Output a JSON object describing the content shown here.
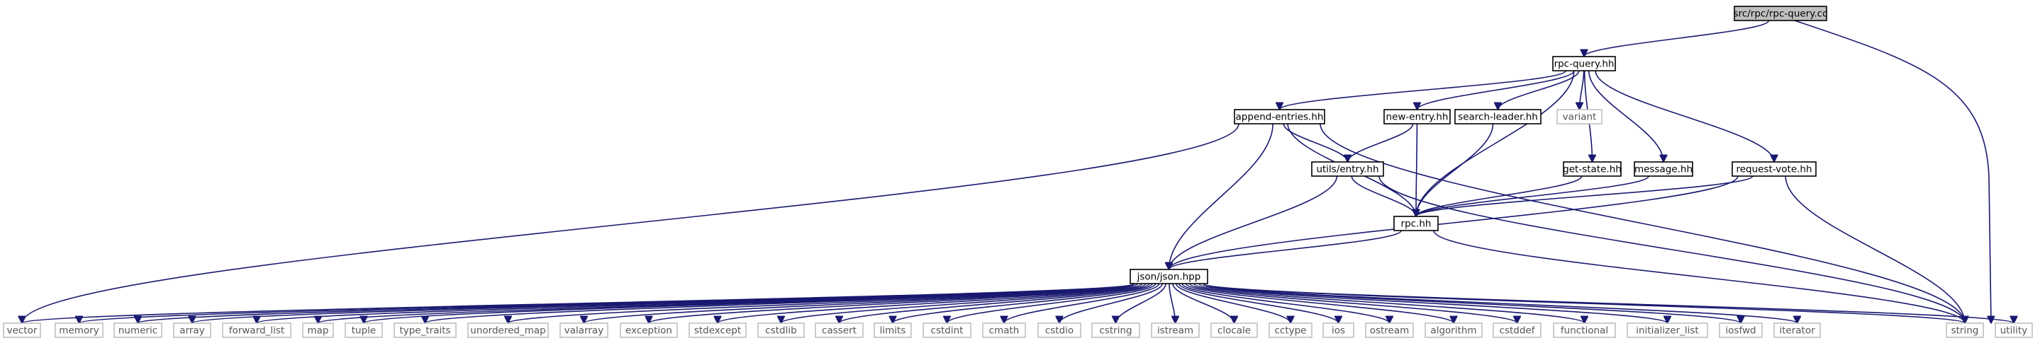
{
  "diagram": {
    "root": "src/rpc/rpc-query.cc",
    "colors": {
      "edge": "#191970",
      "root_fill": "#bfbfbf",
      "internal_border": "#000000",
      "external_border": "#bfbfbf"
    },
    "nodes": [
      {
        "id": "rpc-query-cc",
        "label": "src/rpc/rpc-query.cc",
        "kind": "root"
      },
      {
        "id": "rpc-query-hh",
        "label": "rpc-query.hh",
        "kind": "internal"
      },
      {
        "id": "append-entries-hh",
        "label": "append-entries.hh",
        "kind": "internal"
      },
      {
        "id": "new-entry-hh",
        "label": "new-entry.hh",
        "kind": "internal"
      },
      {
        "id": "search-leader-hh",
        "label": "search-leader.hh",
        "kind": "internal"
      },
      {
        "id": "variant",
        "label": "variant",
        "kind": "external"
      },
      {
        "id": "get-state-hh",
        "label": "get-state.hh",
        "kind": "internal"
      },
      {
        "id": "message-hh",
        "label": "message.hh",
        "kind": "internal"
      },
      {
        "id": "request-vote-hh",
        "label": "request-vote.hh",
        "kind": "internal"
      },
      {
        "id": "utils-entry-hh",
        "label": "utils/entry.hh",
        "kind": "internal"
      },
      {
        "id": "rpc-hh",
        "label": "rpc.hh",
        "kind": "internal"
      },
      {
        "id": "json-hpp",
        "label": "json/json.hpp",
        "kind": "internal"
      },
      {
        "id": "vector",
        "label": "vector",
        "kind": "external"
      },
      {
        "id": "memory",
        "label": "memory",
        "kind": "external"
      },
      {
        "id": "numeric",
        "label": "numeric",
        "kind": "external"
      },
      {
        "id": "array",
        "label": "array",
        "kind": "external"
      },
      {
        "id": "forward_list",
        "label": "forward_list",
        "kind": "external"
      },
      {
        "id": "map",
        "label": "map",
        "kind": "external"
      },
      {
        "id": "tuple",
        "label": "tuple",
        "kind": "external"
      },
      {
        "id": "type_traits",
        "label": "type_traits",
        "kind": "external"
      },
      {
        "id": "unordered_map",
        "label": "unordered_map",
        "kind": "external"
      },
      {
        "id": "valarray",
        "label": "valarray",
        "kind": "external"
      },
      {
        "id": "exception",
        "label": "exception",
        "kind": "external"
      },
      {
        "id": "stdexcept",
        "label": "stdexcept",
        "kind": "external"
      },
      {
        "id": "cstdlib",
        "label": "cstdlib",
        "kind": "external"
      },
      {
        "id": "cassert",
        "label": "cassert",
        "kind": "external"
      },
      {
        "id": "limits",
        "label": "limits",
        "kind": "external"
      },
      {
        "id": "cstdint",
        "label": "cstdint",
        "kind": "external"
      },
      {
        "id": "cmath",
        "label": "cmath",
        "kind": "external"
      },
      {
        "id": "cstdio",
        "label": "cstdio",
        "kind": "external"
      },
      {
        "id": "cstring",
        "label": "cstring",
        "kind": "external"
      },
      {
        "id": "istream",
        "label": "istream",
        "kind": "external"
      },
      {
        "id": "clocale",
        "label": "clocale",
        "kind": "external"
      },
      {
        "id": "cctype",
        "label": "cctype",
        "kind": "external"
      },
      {
        "id": "ios",
        "label": "ios",
        "kind": "external"
      },
      {
        "id": "ostream",
        "label": "ostream",
        "kind": "external"
      },
      {
        "id": "algorithm",
        "label": "algorithm",
        "kind": "external"
      },
      {
        "id": "cstddef",
        "label": "cstddef",
        "kind": "external"
      },
      {
        "id": "functional",
        "label": "functional",
        "kind": "external"
      },
      {
        "id": "initializer_list",
        "label": "initializer_list",
        "kind": "external"
      },
      {
        "id": "iosfwd",
        "label": "iosfwd",
        "kind": "external"
      },
      {
        "id": "iterator",
        "label": "iterator",
        "kind": "external"
      },
      {
        "id": "string",
        "label": "string",
        "kind": "external"
      },
      {
        "id": "utility",
        "label": "utility",
        "kind": "external"
      }
    ],
    "edges": [
      [
        "rpc-query-cc",
        "rpc-query-hh"
      ],
      [
        "rpc-query-cc",
        "utility"
      ],
      [
        "rpc-query-hh",
        "append-entries-hh"
      ],
      [
        "rpc-query-hh",
        "new-entry-hh"
      ],
      [
        "rpc-query-hh",
        "search-leader-hh"
      ],
      [
        "rpc-query-hh",
        "variant"
      ],
      [
        "rpc-query-hh",
        "get-state-hh"
      ],
      [
        "rpc-query-hh",
        "message-hh"
      ],
      [
        "rpc-query-hh",
        "request-vote-hh"
      ],
      [
        "rpc-query-hh",
        "rpc-hh"
      ],
      [
        "append-entries-hh",
        "utils-entry-hh"
      ],
      [
        "append-entries-hh",
        "rpc-hh"
      ],
      [
        "append-entries-hh",
        "json-hpp"
      ],
      [
        "append-entries-hh",
        "vector"
      ],
      [
        "append-entries-hh",
        "string"
      ],
      [
        "new-entry-hh",
        "utils-entry-hh"
      ],
      [
        "new-entry-hh",
        "rpc-hh"
      ],
      [
        "search-leader-hh",
        "rpc-hh"
      ],
      [
        "get-state-hh",
        "rpc-hh"
      ],
      [
        "message-hh",
        "rpc-hh"
      ],
      [
        "request-vote-hh",
        "rpc-hh"
      ],
      [
        "request-vote-hh",
        "json-hpp"
      ],
      [
        "request-vote-hh",
        "string"
      ],
      [
        "utils-entry-hh",
        "json-hpp"
      ],
      [
        "utils-entry-hh",
        "rpc-hh"
      ],
      [
        "utils-entry-hh",
        "string"
      ],
      [
        "rpc-hh",
        "json-hpp"
      ],
      [
        "rpc-hh",
        "string"
      ],
      [
        "json-hpp",
        "vector"
      ],
      [
        "json-hpp",
        "memory"
      ],
      [
        "json-hpp",
        "numeric"
      ],
      [
        "json-hpp",
        "array"
      ],
      [
        "json-hpp",
        "forward_list"
      ],
      [
        "json-hpp",
        "map"
      ],
      [
        "json-hpp",
        "tuple"
      ],
      [
        "json-hpp",
        "type_traits"
      ],
      [
        "json-hpp",
        "unordered_map"
      ],
      [
        "json-hpp",
        "valarray"
      ],
      [
        "json-hpp",
        "exception"
      ],
      [
        "json-hpp",
        "stdexcept"
      ],
      [
        "json-hpp",
        "cstdlib"
      ],
      [
        "json-hpp",
        "cassert"
      ],
      [
        "json-hpp",
        "limits"
      ],
      [
        "json-hpp",
        "cstdint"
      ],
      [
        "json-hpp",
        "cmath"
      ],
      [
        "json-hpp",
        "cstdio"
      ],
      [
        "json-hpp",
        "cstring"
      ],
      [
        "json-hpp",
        "istream"
      ],
      [
        "json-hpp",
        "clocale"
      ],
      [
        "json-hpp",
        "cctype"
      ],
      [
        "json-hpp",
        "ios"
      ],
      [
        "json-hpp",
        "ostream"
      ],
      [
        "json-hpp",
        "algorithm"
      ],
      [
        "json-hpp",
        "cstddef"
      ],
      [
        "json-hpp",
        "functional"
      ],
      [
        "json-hpp",
        "initializer_list"
      ],
      [
        "json-hpp",
        "iosfwd"
      ],
      [
        "json-hpp",
        "iterator"
      ],
      [
        "json-hpp",
        "string"
      ],
      [
        "json-hpp",
        "utility"
      ]
    ]
  }
}
